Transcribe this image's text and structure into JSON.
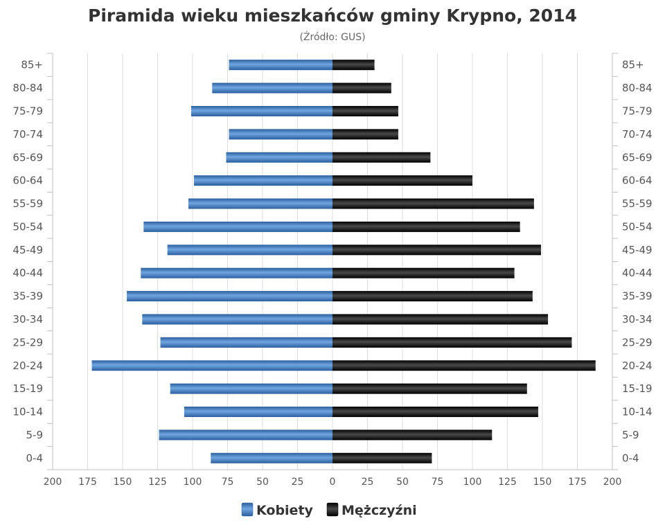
{
  "chart_data": {
    "type": "bar",
    "orientation": "horizontal-population-pyramid",
    "title": "Piramida wieku mieszkańców gminy Krypno, 2014",
    "subtitle": "(Źródło: GUS)",
    "categories": [
      "85+",
      "80-84",
      "75-79",
      "70-74",
      "65-69",
      "60-64",
      "55-59",
      "50-54",
      "45-49",
      "40-44",
      "35-39",
      "30-34",
      "25-29",
      "20-24",
      "15-19",
      "10-14",
      "5-9",
      "0-4"
    ],
    "series": [
      {
        "name": "Kobiety",
        "color": "#3b7cc0",
        "side": "left",
        "values": [
          74,
          86,
          101,
          74,
          76,
          99,
          103,
          135,
          118,
          137,
          147,
          136,
          123,
          172,
          116,
          106,
          124,
          87
        ]
      },
      {
        "name": "Mężczyźni",
        "color": "#1a1a1a",
        "side": "right",
        "values": [
          30,
          42,
          47,
          47,
          70,
          100,
          144,
          134,
          149,
          130,
          143,
          154,
          171,
          188,
          139,
          147,
          114,
          71
        ]
      }
    ],
    "xlim": [
      -200,
      200
    ],
    "xticks": [
      -200,
      -175,
      -150,
      -125,
      -100,
      -75,
      -50,
      -25,
      0,
      25,
      50,
      75,
      100,
      125,
      150,
      175,
      200
    ],
    "xtick_labels": [
      "200",
      "175",
      "150",
      "125",
      "100",
      "75",
      "50",
      "25",
      "0",
      "25",
      "50",
      "75",
      "100",
      "125",
      "150",
      "175",
      "200"
    ],
    "grid": true,
    "legend_position": "bottom-center"
  }
}
